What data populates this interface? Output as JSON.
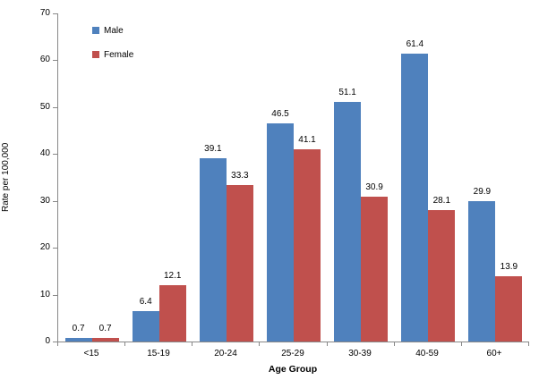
{
  "chart_data": {
    "type": "bar",
    "title": "",
    "categories": [
      "<15",
      "15-19",
      "20-24",
      "25-29",
      "30-39",
      "40-59",
      "60+"
    ],
    "series": [
      {
        "name": "Male",
        "color": "#4F81BD",
        "values": [
          0.7,
          6.4,
          39.1,
          46.5,
          51.1,
          61.4,
          29.9
        ]
      },
      {
        "name": "Female",
        "color": "#C0504D",
        "values": [
          0.7,
          12.1,
          33.3,
          41.1,
          30.9,
          28.1,
          13.9
        ]
      }
    ],
    "xlabel": "Age Group",
    "ylabel": "Rate per 100,000",
    "ylim": [
      0,
      70
    ],
    "yticks": [
      0,
      10,
      20,
      30,
      40,
      50,
      60,
      70
    ],
    "grid": false,
    "data_labels": true,
    "legend_position": "top-left-inside",
    "axis_color": "#888888",
    "text_color": "#000000",
    "background": "#FFFFFF"
  }
}
